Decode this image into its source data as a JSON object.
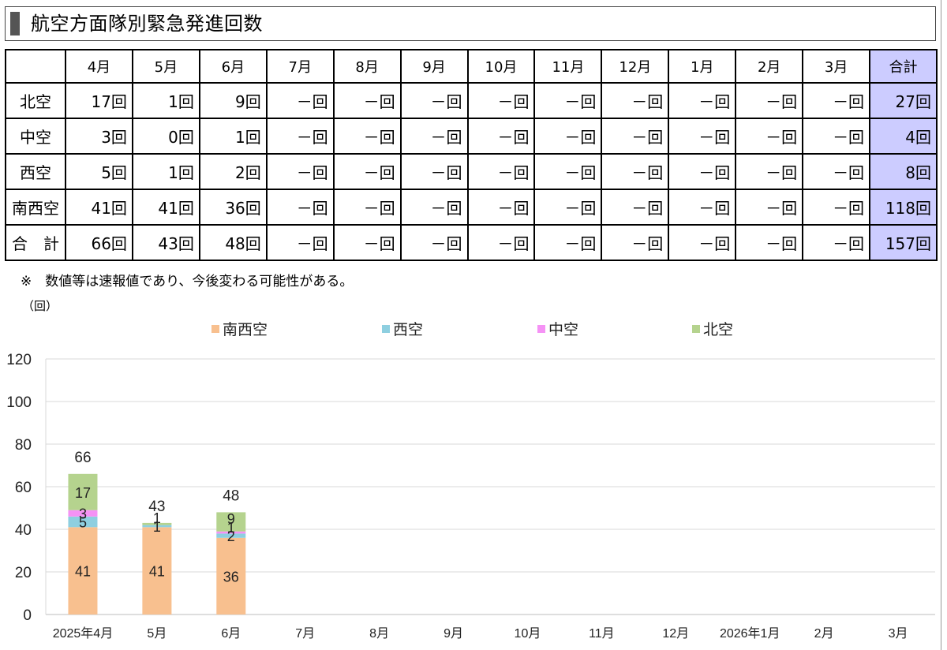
{
  "title": "航空方面隊別緊急発進回数",
  "table": {
    "headers": [
      "",
      "4月",
      "5月",
      "6月",
      "7月",
      "8月",
      "9月",
      "10月",
      "11月",
      "12月",
      "1月",
      "2月",
      "3月",
      "合計"
    ],
    "rows": [
      {
        "name": "北空",
        "cells": [
          "17回",
          "1回",
          "9回",
          "－回",
          "－回",
          "－回",
          "－回",
          "－回",
          "－回",
          "－回",
          "－回",
          "－回",
          "27回"
        ]
      },
      {
        "name": "中空",
        "cells": [
          "3回",
          "0回",
          "1回",
          "－回",
          "－回",
          "－回",
          "－回",
          "－回",
          "－回",
          "－回",
          "－回",
          "－回",
          "4回"
        ]
      },
      {
        "name": "西空",
        "cells": [
          "5回",
          "1回",
          "2回",
          "－回",
          "－回",
          "－回",
          "－回",
          "－回",
          "－回",
          "－回",
          "－回",
          "－回",
          "8回"
        ]
      },
      {
        "name": "南西空",
        "cells": [
          "41回",
          "41回",
          "36回",
          "－回",
          "－回",
          "－回",
          "－回",
          "－回",
          "－回",
          "－回",
          "－回",
          "－回",
          "118回"
        ]
      },
      {
        "name": "合　計",
        "cells": [
          "66回",
          "43回",
          "48回",
          "－回",
          "－回",
          "－回",
          "－回",
          "－回",
          "－回",
          "－回",
          "－回",
          "－回",
          "157回"
        ]
      }
    ]
  },
  "note": "※　数値等は速報値であり、今後変わる可能性がある。",
  "chart_data": {
    "type": "bar",
    "stacked": true,
    "unit_label": "（回）",
    "categories": [
      "2025年4月",
      "5月",
      "6月",
      "7月",
      "8月",
      "9月",
      "10月",
      "11月",
      "12月",
      "2026年1月",
      "2月",
      "3月"
    ],
    "series": [
      {
        "name": "南西空",
        "color": "#f8c08f",
        "values": [
          41,
          41,
          36,
          null,
          null,
          null,
          null,
          null,
          null,
          null,
          null,
          null
        ]
      },
      {
        "name": "西空",
        "color": "#8ecfe0",
        "values": [
          5,
          1,
          2,
          null,
          null,
          null,
          null,
          null,
          null,
          null,
          null,
          null
        ]
      },
      {
        "name": "中空",
        "color": "#f592f5",
        "values": [
          3,
          0,
          1,
          null,
          null,
          null,
          null,
          null,
          null,
          null,
          null,
          null
        ]
      },
      {
        "name": "北空",
        "color": "#b5d38e",
        "values": [
          17,
          1,
          9,
          null,
          null,
          null,
          null,
          null,
          null,
          null,
          null,
          null
        ]
      }
    ],
    "totals": [
      66,
      43,
      48,
      null,
      null,
      null,
      null,
      null,
      null,
      null,
      null,
      null
    ],
    "ylim": [
      0,
      120
    ],
    "yticks": [
      0,
      20,
      40,
      60,
      80,
      100,
      120
    ],
    "grid": true,
    "legend_position": "top"
  }
}
